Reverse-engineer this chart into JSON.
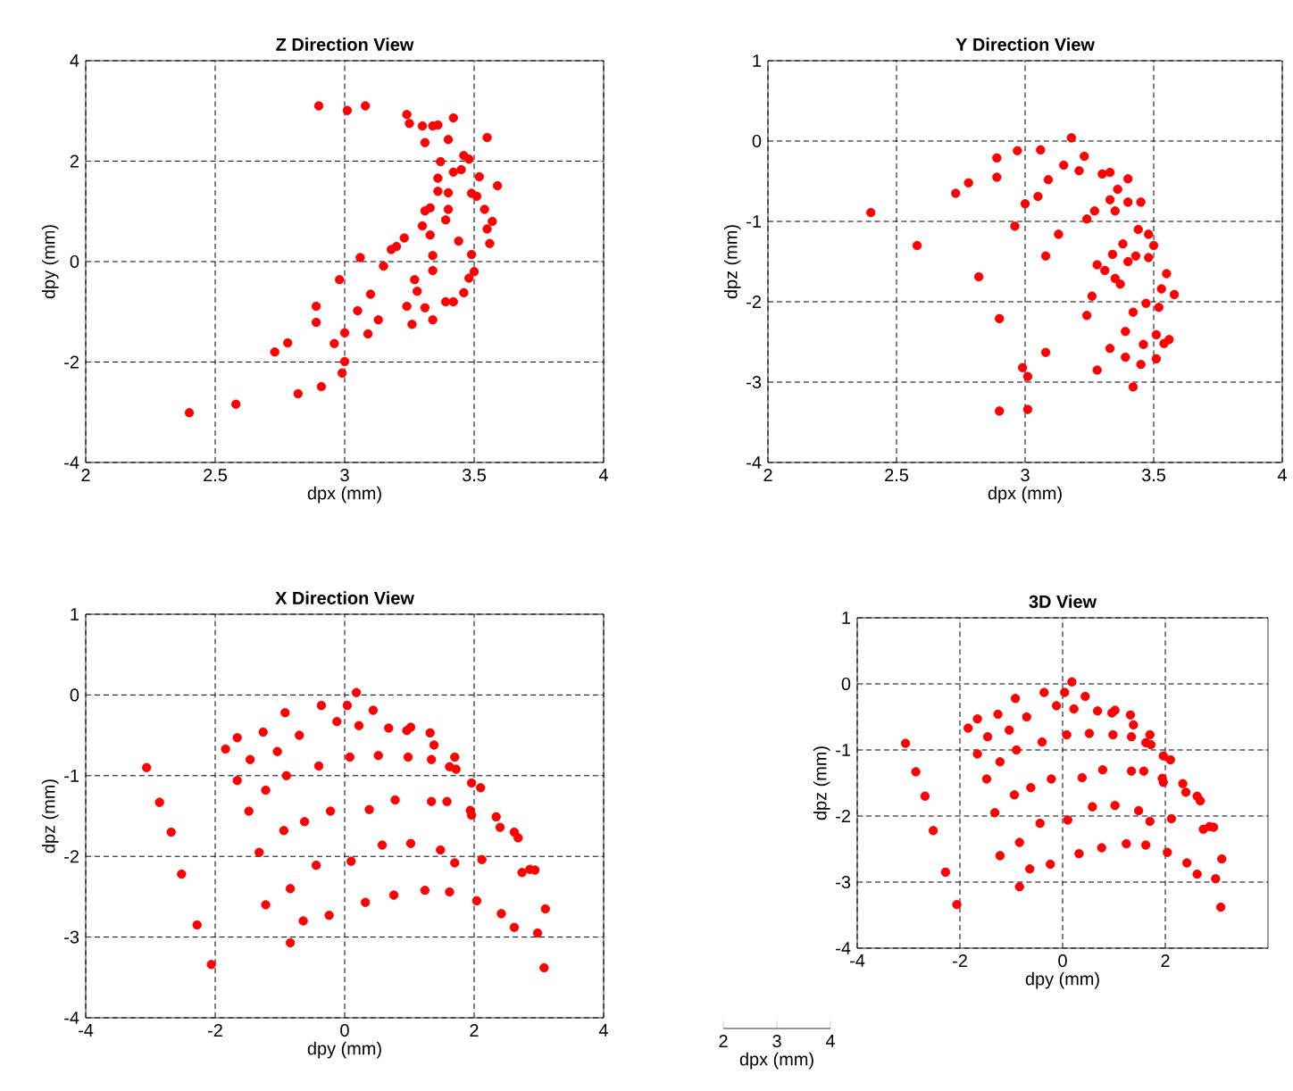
{
  "chart_data": [
    {
      "type": "scatter",
      "title": "Z Direction View",
      "xlabel": "dpx (mm)",
      "ylabel": "dpy (mm)",
      "color": "#ff0000",
      "grid": true,
      "xlim": [
        2,
        4
      ],
      "ylim": [
        -4,
        4
      ],
      "xticks": [
        2,
        2.5,
        3,
        3.5,
        4
      ],
      "yticks": [
        -4,
        -2,
        0,
        2,
        4
      ],
      "x": [
        2.9,
        3.01,
        3.08,
        3.24,
        3.25,
        3.3,
        3.34,
        3.36,
        3.42,
        3.31,
        3.4,
        3.55,
        3.37,
        3.46,
        3.48,
        3.42,
        3.45,
        3.52,
        3.36,
        3.59,
        3.36,
        3.4,
        3.49,
        3.51,
        3.33,
        3.4,
        3.54,
        3.31,
        3.39,
        3.57,
        3.55,
        3.3,
        3.33,
        3.23,
        3.2,
        3.18,
        3.44,
        3.56,
        3.06,
        3.15,
        3.34,
        3.49,
        3.34,
        3.5,
        3.48,
        2.98,
        3.27,
        3.28,
        3.1,
        3.46,
        2.89,
        3.24,
        3.31,
        3.05,
        3.39,
        3.42,
        2.89,
        3.13,
        3.26,
        3.34,
        3.0,
        3.09,
        2.96,
        2.78,
        2.73,
        3.0,
        2.99,
        2.91,
        2.82,
        2.58,
        2.4
      ],
      "values": [
        3.1,
        3.01,
        3.1,
        2.93,
        2.75,
        2.7,
        2.7,
        2.72,
        2.86,
        2.37,
        2.43,
        2.47,
        1.99,
        2.11,
        2.04,
        1.78,
        1.83,
        1.69,
        1.66,
        1.51,
        1.4,
        1.37,
        1.36,
        1.3,
        1.07,
        1.04,
        1.04,
        1.01,
        0.83,
        0.8,
        0.65,
        0.71,
        0.53,
        0.47,
        0.3,
        0.24,
        0.41,
        0.36,
        0.08,
        -0.09,
        0.12,
        0.14,
        -0.18,
        -0.2,
        -0.33,
        -0.36,
        -0.36,
        -0.59,
        -0.65,
        -0.62,
        -0.89,
        -0.89,
        -0.92,
        -0.98,
        -0.8,
        -0.8,
        -1.21,
        -1.16,
        -1.25,
        -1.16,
        -1.42,
        -1.44,
        -1.63,
        -1.62,
        -1.8,
        -1.99,
        -2.22,
        -2.49,
        -2.63,
        -2.84,
        -3.01
      ]
    },
    {
      "type": "scatter",
      "title": "Y Direction View",
      "xlabel": "dpx (mm)",
      "ylabel": "dpz (mm)",
      "color": "#ff0000",
      "grid": true,
      "xlim": [
        2,
        4
      ],
      "ylim": [
        -4,
        1
      ],
      "xticks": [
        2,
        2.5,
        3,
        3.5,
        4
      ],
      "yticks": [
        -4,
        -3,
        -2,
        -1,
        0,
        1
      ],
      "x": [
        3.18,
        3.06,
        2.97,
        2.89,
        3.23,
        3.15,
        3.21,
        2.89,
        3.09,
        3.3,
        3.33,
        3.4,
        2.78,
        2.73,
        3.05,
        3.0,
        3.36,
        3.33,
        3.4,
        3.45,
        3.35,
        3.27,
        3.24,
        2.4,
        2.96,
        3.44,
        3.48,
        3.13,
        2.58,
        3.38,
        3.5,
        3.08,
        3.34,
        3.43,
        3.48,
        3.28,
        3.31,
        3.4,
        3.35,
        3.37,
        3.55,
        2.82,
        3.53,
        3.58,
        3.26,
        3.47,
        3.52,
        3.42,
        3.24,
        2.9,
        3.51,
        3.56,
        3.54,
        3.39,
        3.46,
        3.33,
        3.08,
        3.39,
        3.51,
        3.45,
        3.28,
        2.99,
        3.01,
        3.42,
        2.9,
        3.01
      ],
      "values": [
        0.04,
        -0.11,
        -0.12,
        -0.21,
        -0.19,
        -0.3,
        -0.37,
        -0.45,
        -0.48,
        -0.41,
        -0.39,
        -0.47,
        -0.52,
        -0.65,
        -0.69,
        -0.78,
        -0.6,
        -0.73,
        -0.76,
        -0.76,
        -0.87,
        -0.87,
        -0.97,
        -0.89,
        -1.06,
        -1.1,
        -1.16,
        -1.16,
        -1.3,
        -1.28,
        -1.3,
        -1.43,
        -1.41,
        -1.43,
        -1.45,
        -1.54,
        -1.61,
        -1.5,
        -1.71,
        -1.78,
        -1.65,
        -1.69,
        -1.84,
        -1.91,
        -1.93,
        -2.02,
        -2.07,
        -2.13,
        -2.17,
        -2.21,
        -2.41,
        -2.47,
        -2.52,
        -2.37,
        -2.53,
        -2.58,
        -2.63,
        -2.69,
        -2.71,
        -2.78,
        -2.85,
        -2.82,
        -2.93,
        -3.06,
        -3.36,
        -3.34
      ]
    },
    {
      "type": "scatter",
      "title": "X Direction View",
      "xlabel": "dpy (mm)",
      "ylabel": "dpz (mm)",
      "color": "#ff0000",
      "grid": true,
      "xlim": [
        -4,
        4
      ],
      "ylim": [
        -4,
        1
      ],
      "xticks": [
        -4,
        -2,
        0,
        2,
        4
      ],
      "yticks": [
        -4,
        -3,
        -2,
        -1,
        0,
        1
      ],
      "x": [
        0.18,
        0.04,
        -0.36,
        0.44,
        -0.92,
        -0.12,
        0.22,
        0.68,
        1.02,
        0.96,
        1.32,
        -1.26,
        -1.66,
        -0.7,
        1.38,
        -1.84,
        -1.04,
        -1.46,
        0.08,
        0.52,
        0.98,
        1.34,
        1.7,
        1.62,
        1.72,
        -3.06,
        -0.4,
        -0.9,
        -1.66,
        1.96,
        2.1,
        -1.22,
        -2.86,
        0.78,
        1.34,
        1.58,
        -1.48,
        -0.22,
        0.38,
        1.94,
        1.96,
        2.34,
        2.4,
        2.62,
        2.68,
        -2.68,
        -0.94,
        -0.62,
        0.58,
        1.02,
        1.48,
        1.7,
        2.12,
        -1.32,
        -0.44,
        0.1,
        2.74,
        2.86,
        2.94,
        -2.52,
        -0.84,
        1.24,
        1.62,
        0.76,
        -1.22,
        0.32,
        2.04,
        -0.24,
        -0.64,
        2.42,
        3.1,
        2.62,
        2.98,
        -2.28,
        -0.84,
        -2.06,
        3.08
      ],
      "values": [
        0.03,
        -0.13,
        -0.13,
        -0.19,
        -0.22,
        -0.33,
        -0.38,
        -0.41,
        -0.4,
        -0.44,
        -0.47,
        -0.46,
        -0.53,
        -0.5,
        -0.62,
        -0.67,
        -0.7,
        -0.8,
        -0.77,
        -0.75,
        -0.77,
        -0.8,
        -0.77,
        -0.89,
        -0.92,
        -0.9,
        -0.88,
        -1.0,
        -1.06,
        -1.09,
        -1.15,
        -1.18,
        -1.33,
        -1.3,
        -1.32,
        -1.32,
        -1.44,
        -1.44,
        -1.42,
        -1.43,
        -1.49,
        -1.51,
        -1.64,
        -1.7,
        -1.77,
        -1.7,
        -1.68,
        -1.57,
        -1.86,
        -1.84,
        -1.92,
        -2.08,
        -2.04,
        -1.95,
        -2.11,
        -2.06,
        -2.2,
        -2.16,
        -2.17,
        -2.22,
        -2.4,
        -2.42,
        -2.44,
        -2.48,
        -2.6,
        -2.57,
        -2.55,
        -2.73,
        -2.8,
        -2.71,
        -2.65,
        -2.88,
        -2.95,
        -2.85,
        -3.07,
        -3.34,
        -3.38
      ]
    },
    {
      "type": "scatter",
      "title": "3D View",
      "xlabel": "dpy (mm)",
      "ylabel": "dpz (mm)",
      "x2label": "dpx (mm)",
      "color": "#ff0000",
      "grid": true,
      "xlim": [
        -4,
        4
      ],
      "ylim": [
        -4,
        1
      ],
      "x2lim": [
        2,
        4
      ],
      "xticks": [
        -4,
        -2,
        0,
        2
      ],
      "yticks": [
        -4,
        -3,
        -2,
        -1,
        0,
        1
      ],
      "x2ticks": [
        2,
        3,
        4
      ],
      "x": [
        0.18,
        0.04,
        -0.36,
        0.44,
        -0.92,
        -0.12,
        0.22,
        0.68,
        1.02,
        0.96,
        1.32,
        -1.26,
        -1.66,
        -0.7,
        1.38,
        -1.84,
        -1.04,
        -1.46,
        0.08,
        0.52,
        0.98,
        1.34,
        1.7,
        1.62,
        1.72,
        -3.06,
        -0.4,
        -0.9,
        -1.66,
        1.96,
        2.1,
        -1.22,
        -2.86,
        0.78,
        1.34,
        1.58,
        -1.48,
        -0.22,
        0.38,
        1.94,
        1.96,
        2.34,
        2.4,
        2.62,
        2.68,
        -2.68,
        -0.94,
        -0.62,
        0.58,
        1.02,
        1.48,
        1.7,
        2.12,
        -1.32,
        -0.44,
        0.1,
        2.74,
        2.86,
        2.94,
        -2.52,
        -0.84,
        1.24,
        1.62,
        0.76,
        -1.22,
        0.32,
        2.04,
        -0.24,
        -0.64,
        2.42,
        3.1,
        2.62,
        2.98,
        -2.28,
        -0.84,
        -2.06,
        3.08
      ],
      "values": [
        0.03,
        -0.13,
        -0.13,
        -0.19,
        -0.22,
        -0.33,
        -0.38,
        -0.41,
        -0.4,
        -0.44,
        -0.47,
        -0.46,
        -0.53,
        -0.5,
        -0.62,
        -0.67,
        -0.7,
        -0.8,
        -0.77,
        -0.75,
        -0.77,
        -0.8,
        -0.77,
        -0.89,
        -0.92,
        -0.9,
        -0.88,
        -1.0,
        -1.06,
        -1.09,
        -1.15,
        -1.18,
        -1.33,
        -1.3,
        -1.32,
        -1.32,
        -1.44,
        -1.44,
        -1.42,
        -1.43,
        -1.49,
        -1.51,
        -1.64,
        -1.7,
        -1.77,
        -1.7,
        -1.68,
        -1.57,
        -1.86,
        -1.84,
        -1.92,
        -2.08,
        -2.04,
        -1.95,
        -2.11,
        -2.06,
        -2.2,
        -2.16,
        -2.17,
        -2.22,
        -2.4,
        -2.42,
        -2.44,
        -2.48,
        -2.6,
        -2.57,
        -2.55,
        -2.73,
        -2.8,
        -2.71,
        -2.65,
        -2.88,
        -2.95,
        -2.85,
        -3.07,
        -3.34,
        -3.38
      ]
    }
  ]
}
